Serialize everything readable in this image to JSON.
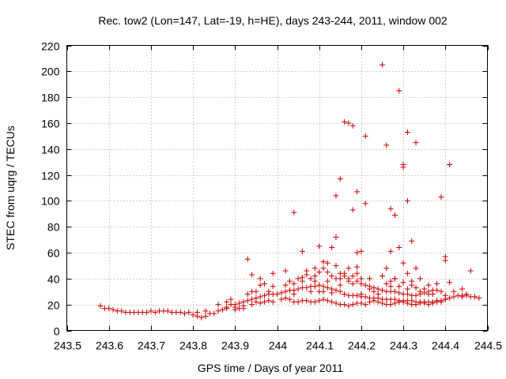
{
  "chart_data": {
    "type": "scatter",
    "title": "Rec. tow2 (Lon=147, Lat=-19, h=HE), days 243-244, 2011, window 002",
    "xlabel": "GPS time / Days of year 2011",
    "ylabel": "STEC from uqrg / TECUs",
    "xlim": [
      243.5,
      244.5
    ],
    "ylim": [
      0,
      220
    ],
    "xticks": [
      243.5,
      243.6,
      243.7,
      243.8,
      243.9,
      244.0,
      244.1,
      244.2,
      244.3,
      244.4,
      244.5
    ],
    "xtick_labels": [
      "243.5",
      "243.6",
      "243.7",
      "243.8",
      "243.9",
      "244",
      "244.1",
      "244.2",
      "244.3",
      "244.4",
      "244.5"
    ],
    "yticks": [
      0,
      20,
      40,
      60,
      80,
      100,
      120,
      140,
      160,
      180,
      200,
      220
    ],
    "ytick_labels": [
      "0",
      "20",
      "40",
      "60",
      "80",
      "100",
      "120",
      "140",
      "160",
      "180",
      "200",
      "220"
    ],
    "grid": true,
    "marker": "+",
    "marker_color": "#cc0000",
    "series": [
      {
        "name": "STEC",
        "points": [
          [
            243.58,
            19
          ],
          [
            243.59,
            17
          ],
          [
            243.6,
            17
          ],
          [
            243.61,
            16
          ],
          [
            243.62,
            15
          ],
          [
            243.63,
            15
          ],
          [
            243.64,
            14
          ],
          [
            243.65,
            14
          ],
          [
            243.66,
            14
          ],
          [
            243.67,
            14
          ],
          [
            243.68,
            14
          ],
          [
            243.69,
            14
          ],
          [
            243.7,
            15
          ],
          [
            243.71,
            14
          ],
          [
            243.72,
            15
          ],
          [
            243.73,
            15
          ],
          [
            243.74,
            15
          ],
          [
            243.75,
            14
          ],
          [
            243.76,
            14
          ],
          [
            243.77,
            14
          ],
          [
            243.78,
            13
          ],
          [
            243.79,
            14
          ],
          [
            243.8,
            12
          ],
          [
            243.81,
            11
          ],
          [
            243.82,
            10
          ],
          [
            243.83,
            11
          ],
          [
            243.84,
            13
          ],
          [
            243.85,
            13
          ],
          [
            243.86,
            15
          ],
          [
            243.87,
            16
          ],
          [
            243.88,
            18
          ],
          [
            243.89,
            20
          ],
          [
            243.9,
            20
          ],
          [
            243.91,
            21
          ],
          [
            243.92,
            22
          ],
          [
            243.93,
            23
          ],
          [
            243.94,
            24
          ],
          [
            243.95,
            25
          ],
          [
            243.96,
            26
          ],
          [
            243.97,
            27
          ],
          [
            243.98,
            28
          ],
          [
            243.99,
            28
          ],
          [
            243.81,
            14
          ],
          [
            243.83,
            15
          ],
          [
            243.86,
            20
          ],
          [
            243.88,
            22
          ],
          [
            243.89,
            24
          ],
          [
            243.9,
            18
          ],
          [
            243.91,
            17
          ],
          [
            243.92,
            19
          ],
          [
            243.93,
            28
          ],
          [
            243.94,
            30
          ],
          [
            243.95,
            30
          ],
          [
            243.96,
            35
          ],
          [
            243.97,
            36
          ],
          [
            243.98,
            30
          ],
          [
            243.99,
            34
          ],
          [
            243.88,
            17
          ],
          [
            243.9,
            16
          ],
          [
            243.92,
            17
          ],
          [
            243.94,
            20
          ],
          [
            243.95,
            22
          ],
          [
            243.96,
            21
          ],
          [
            243.97,
            22
          ],
          [
            243.98,
            23
          ],
          [
            243.99,
            22
          ],
          [
            243.93,
            55
          ],
          [
            243.94,
            43
          ],
          [
            243.96,
            40
          ],
          [
            243.99,
            44
          ],
          [
            244.0,
            28
          ],
          [
            244.01,
            29
          ],
          [
            244.02,
            30
          ],
          [
            244.03,
            31
          ],
          [
            244.04,
            31
          ],
          [
            244.05,
            32
          ],
          [
            244.06,
            33
          ],
          [
            244.07,
            33
          ],
          [
            244.08,
            34
          ],
          [
            244.09,
            34
          ],
          [
            244.1,
            35
          ],
          [
            244.11,
            34
          ],
          [
            244.12,
            33
          ],
          [
            244.13,
            32
          ],
          [
            244.14,
            31
          ],
          [
            244.15,
            30
          ],
          [
            244.16,
            28
          ],
          [
            244.17,
            27
          ],
          [
            244.18,
            27
          ],
          [
            244.19,
            27
          ],
          [
            244.2,
            26
          ],
          [
            244.21,
            26
          ],
          [
            244.22,
            25
          ],
          [
            244.23,
            25
          ],
          [
            244.24,
            25
          ],
          [
            244.25,
            24
          ],
          [
            244.26,
            24
          ],
          [
            244.27,
            24
          ],
          [
            244.28,
            24
          ],
          [
            244.29,
            23
          ],
          [
            244.3,
            23
          ],
          [
            244.31,
            23
          ],
          [
            244.32,
            23
          ],
          [
            244.33,
            22
          ],
          [
            244.34,
            22
          ],
          [
            244.35,
            22
          ],
          [
            244.36,
            22
          ],
          [
            244.37,
            22
          ],
          [
            244.38,
            23
          ],
          [
            244.39,
            23
          ],
          [
            244.4,
            24
          ],
          [
            244.41,
            25
          ],
          [
            244.42,
            26
          ],
          [
            244.43,
            27
          ],
          [
            244.44,
            27
          ],
          [
            244.45,
            27
          ],
          [
            244.46,
            26
          ],
          [
            244.47,
            26
          ],
          [
            244.48,
            25
          ],
          [
            244.01,
            24
          ],
          [
            244.02,
            25
          ],
          [
            244.03,
            24
          ],
          [
            244.04,
            22
          ],
          [
            244.05,
            22
          ],
          [
            244.06,
            23
          ],
          [
            244.07,
            23
          ],
          [
            244.08,
            22
          ],
          [
            244.09,
            22
          ],
          [
            244.1,
            23
          ],
          [
            244.11,
            24
          ],
          [
            244.12,
            23
          ],
          [
            244.13,
            22
          ],
          [
            244.14,
            21
          ],
          [
            244.15,
            20
          ],
          [
            244.16,
            20
          ],
          [
            244.17,
            19
          ],
          [
            244.18,
            20
          ],
          [
            244.19,
            21
          ],
          [
            244.2,
            21
          ],
          [
            244.21,
            20
          ],
          [
            244.22,
            22
          ],
          [
            244.23,
            23
          ],
          [
            244.24,
            22
          ],
          [
            244.25,
            21
          ],
          [
            244.26,
            20
          ],
          [
            244.27,
            20
          ],
          [
            244.28,
            21
          ],
          [
            244.29,
            22
          ],
          [
            244.3,
            22
          ],
          [
            244.31,
            21
          ],
          [
            244.32,
            20
          ],
          [
            244.33,
            20
          ],
          [
            244.34,
            21
          ],
          [
            244.35,
            21
          ],
          [
            244.36,
            20
          ],
          [
            244.37,
            21
          ],
          [
            244.38,
            22
          ],
          [
            244.39,
            22
          ],
          [
            244.4,
            24
          ],
          [
            244.02,
            35
          ],
          [
            244.03,
            38
          ],
          [
            244.04,
            36
          ],
          [
            244.05,
            40
          ],
          [
            244.06,
            41
          ],
          [
            244.07,
            43
          ],
          [
            244.08,
            40
          ],
          [
            244.09,
            42
          ],
          [
            244.1,
            45
          ],
          [
            244.11,
            48
          ],
          [
            244.12,
            45
          ],
          [
            244.13,
            42
          ],
          [
            244.14,
            40
          ],
          [
            244.15,
            44
          ],
          [
            244.16,
            42
          ],
          [
            244.17,
            40
          ],
          [
            244.18,
            42
          ],
          [
            244.19,
            38
          ],
          [
            244.2,
            36
          ],
          [
            244.21,
            35
          ],
          [
            244.22,
            34
          ],
          [
            244.23,
            33
          ],
          [
            244.24,
            32
          ],
          [
            244.25,
            31
          ],
          [
            244.26,
            30
          ],
          [
            244.27,
            30
          ],
          [
            244.28,
            30
          ],
          [
            244.29,
            29
          ],
          [
            244.3,
            28
          ],
          [
            244.31,
            28
          ],
          [
            244.32,
            27
          ],
          [
            244.33,
            27
          ],
          [
            244.34,
            28
          ],
          [
            244.35,
            29
          ],
          [
            244.36,
            30
          ],
          [
            244.37,
            31
          ],
          [
            244.38,
            31
          ],
          [
            244.39,
            30
          ],
          [
            244.02,
            46
          ],
          [
            244.04,
            28
          ],
          [
            244.06,
            38
          ],
          [
            244.07,
            46
          ],
          [
            244.08,
            30
          ],
          [
            244.09,
            38
          ],
          [
            244.1,
            30
          ],
          [
            244.11,
            30
          ],
          [
            244.12,
            38
          ],
          [
            244.13,
            29
          ],
          [
            244.14,
            50
          ],
          [
            244.15,
            35
          ],
          [
            244.16,
            44
          ],
          [
            244.17,
            48
          ],
          [
            244.18,
            36
          ],
          [
            244.19,
            49
          ],
          [
            244.2,
            40
          ],
          [
            244.22,
            40
          ],
          [
            244.23,
            30
          ],
          [
            244.24,
            28
          ],
          [
            244.26,
            36
          ],
          [
            244.27,
            34
          ],
          [
            244.28,
            40
          ],
          [
            244.29,
            34
          ],
          [
            244.3,
            37
          ],
          [
            244.31,
            32
          ],
          [
            244.32,
            35
          ],
          [
            244.33,
            33
          ],
          [
            244.34,
            30
          ],
          [
            244.35,
            32
          ],
          [
            244.36,
            28
          ],
          [
            244.37,
            28
          ],
          [
            244.04,
            91
          ],
          [
            244.06,
            61
          ],
          [
            244.09,
            48
          ],
          [
            244.1,
            65
          ],
          [
            244.11,
            53
          ],
          [
            244.12,
            52
          ],
          [
            244.13,
            64
          ],
          [
            244.14,
            72
          ],
          [
            244.14,
            104
          ],
          [
            244.15,
            117
          ],
          [
            244.16,
            161
          ],
          [
            244.17,
            160
          ],
          [
            244.18,
            158
          ],
          [
            244.18,
            93
          ],
          [
            244.19,
            107
          ],
          [
            244.19,
            60
          ],
          [
            244.2,
            61
          ],
          [
            244.21,
            150
          ],
          [
            244.21,
            98
          ],
          [
            244.25,
            205
          ],
          [
            244.26,
            143
          ],
          [
            244.27,
            94
          ],
          [
            244.27,
            61
          ],
          [
            244.28,
            89
          ],
          [
            244.29,
            185
          ],
          [
            244.29,
            64
          ],
          [
            244.3,
            128
          ],
          [
            244.3,
            126
          ],
          [
            244.31,
            153
          ],
          [
            244.31,
            100
          ],
          [
            244.32,
            69
          ],
          [
            244.33,
            145
          ],
          [
            244.33,
            48
          ],
          [
            244.39,
            103
          ],
          [
            244.41,
            128
          ],
          [
            244.4,
            57
          ],
          [
            244.4,
            54
          ],
          [
            244.41,
            37
          ],
          [
            244.44,
            26
          ],
          [
            244.46,
            46
          ],
          [
            244.15,
            40
          ],
          [
            244.17,
            38
          ],
          [
            244.19,
            44
          ],
          [
            244.2,
            28
          ],
          [
            244.22,
            32
          ],
          [
            244.25,
            42
          ],
          [
            244.26,
            48
          ],
          [
            244.27,
            38
          ],
          [
            244.28,
            40
          ],
          [
            244.3,
            52
          ],
          [
            244.31,
            44
          ],
          [
            244.32,
            38
          ],
          [
            244.34,
            40
          ],
          [
            244.36,
            35
          ],
          [
            244.38,
            36
          ],
          [
            244.4,
            27
          ],
          [
            244.42,
            30
          ],
          [
            244.44,
            32
          ],
          [
            244.45,
            28
          ],
          [
            244.47,
            26
          ]
        ]
      }
    ]
  }
}
